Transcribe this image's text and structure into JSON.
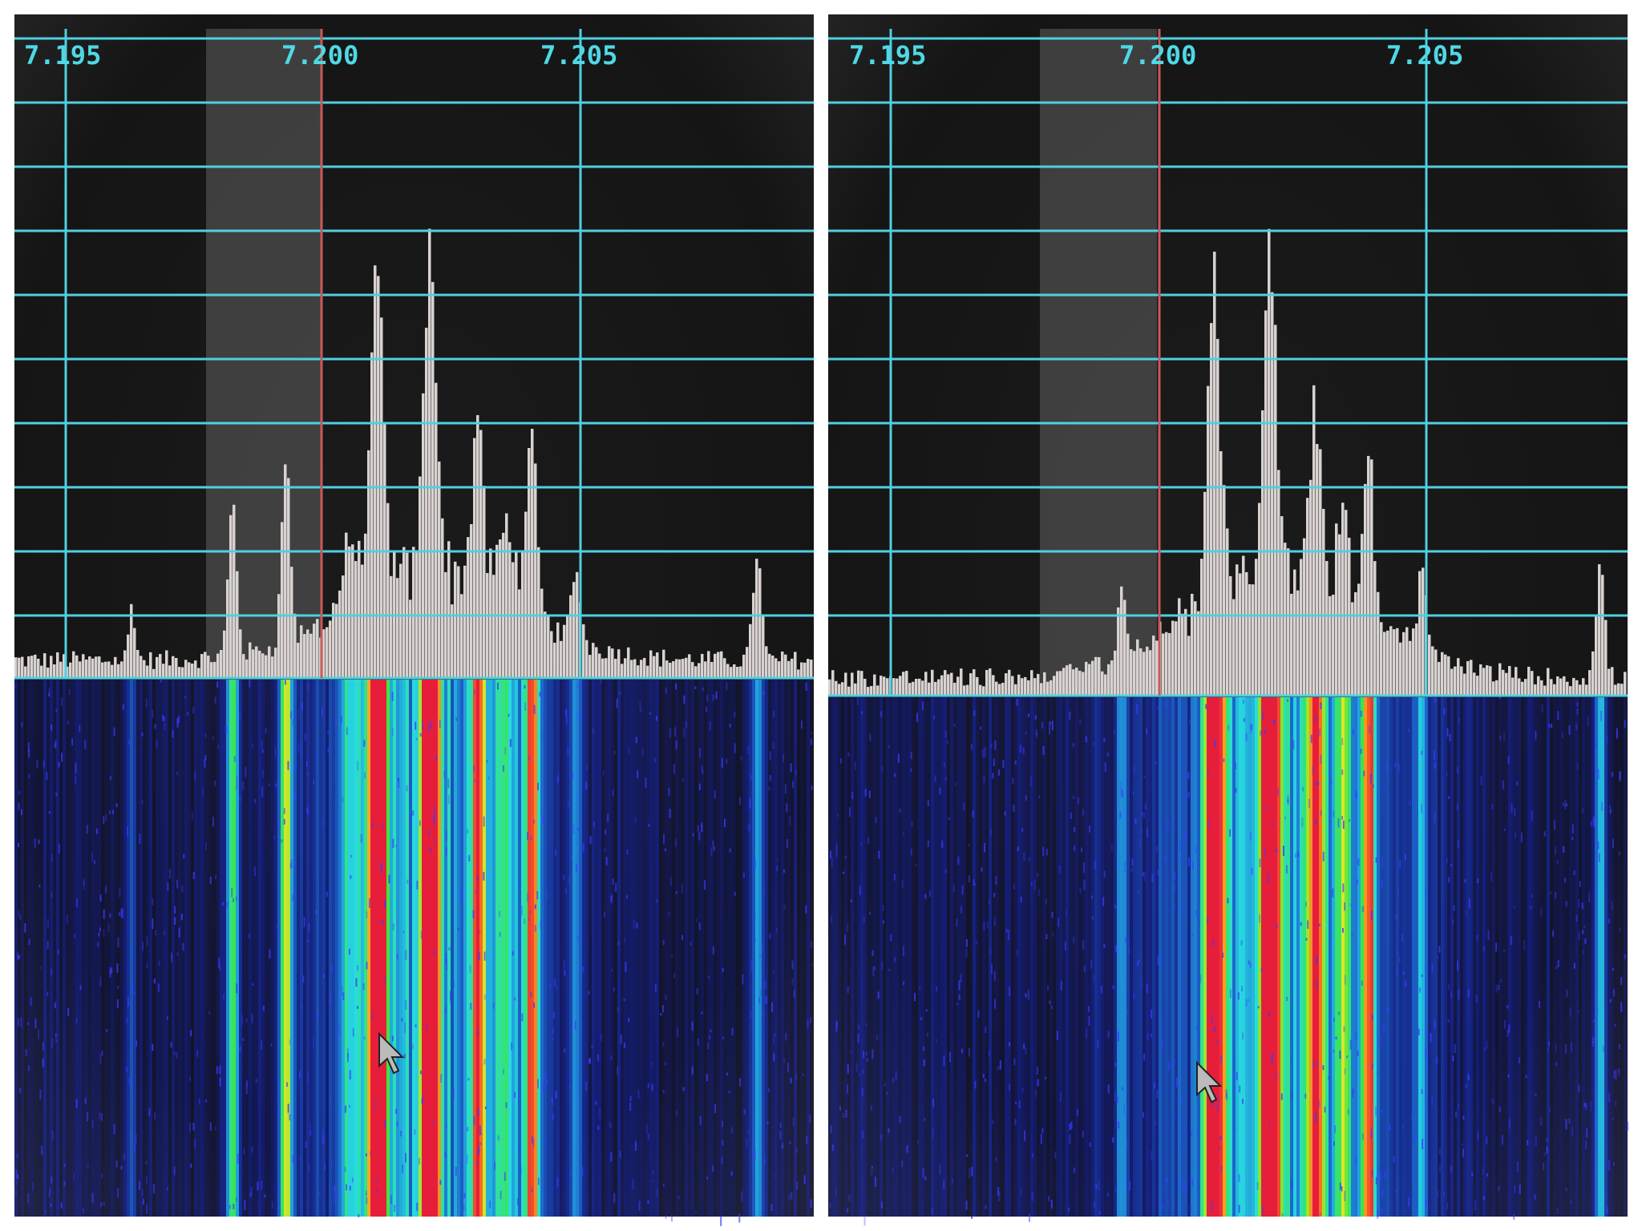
{
  "panels": [
    {
      "frequency_labels": [
        "7.195",
        "7.200",
        "7.205"
      ]
    },
    {
      "frequency_labels": [
        "7.195",
        "7.200",
        "7.205"
      ]
    }
  ]
}
